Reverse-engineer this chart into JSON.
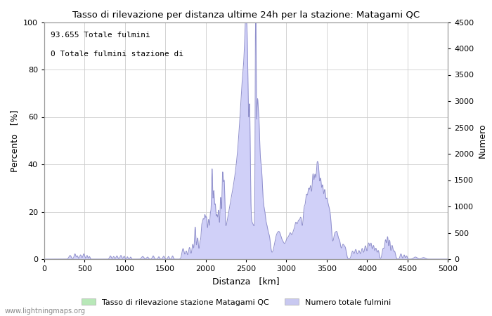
{
  "title": "Tasso di rilevazione per distanza ultime 24h per la stazione: Matagami QC",
  "xlabel": "Distanza   [km]",
  "ylabel_left": "Percento   [%]",
  "ylabel_right": "Numero",
  "annotation_line1": "93.655 Totale fulmini",
  "annotation_line2": "0 Totale fulmini stazione di",
  "legend_label1": "Tasso di rilevazione stazione Matagami QC",
  "legend_label2": "Numero totale fulmini",
  "legend_color1": "#b8e8b8",
  "legend_color2": "#c8c8f0",
  "xlim": [
    0,
    5000
  ],
  "ylim_left": [
    0,
    100
  ],
  "ylim_right": [
    0,
    4500
  ],
  "xticks": [
    0,
    500,
    1000,
    1500,
    2000,
    2500,
    3000,
    3500,
    4000,
    4500,
    5000
  ],
  "yticks_left": [
    0,
    20,
    40,
    60,
    80,
    100
  ],
  "yticks_right": [
    0,
    500,
    1000,
    1500,
    2000,
    2500,
    3000,
    3500,
    4000,
    4500
  ],
  "fill_color_blue": "#d0d0f8",
  "line_color_blue": "#9090cc",
  "fill_color_green": "#b8e8b8",
  "line_color_green": "#66aa66",
  "background_color": "#ffffff",
  "grid_color": "#cccccc",
  "watermark": "www.lightningmaps.org"
}
